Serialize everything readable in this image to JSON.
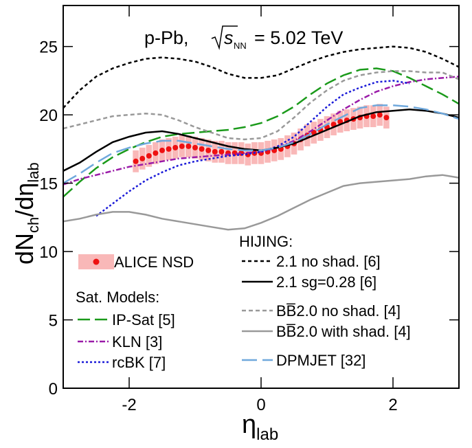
{
  "chart_data": {
    "type": "line",
    "title_parts": [
      "p-Pb,",
      "s",
      "NN",
      "= 5.02 TeV"
    ],
    "ylabel_parts": [
      "dN",
      "ch",
      "/dη",
      "lab"
    ],
    "xlabel_parts": [
      "η",
      "lab"
    ],
    "xlim": [
      -3,
      3
    ],
    "xticks": [
      -2,
      0,
      2
    ],
    "ylim": [
      0,
      28
    ],
    "yticks": [
      0,
      5,
      10,
      15,
      20,
      25
    ],
    "legend_groups": [
      "Sat. Models:",
      "HIJING:"
    ],
    "x": [
      -3,
      -2.75,
      -2.5,
      -2.25,
      -2,
      -1.75,
      -1.5,
      -1.25,
      -1,
      -0.75,
      -0.5,
      -0.25,
      0,
      0.25,
      0.5,
      0.75,
      1,
      1.25,
      1.5,
      1.75,
      2,
      2.25,
      2.5,
      2.75,
      3
    ],
    "series": [
      {
        "name": "ALICE NSD",
        "color": "#ee1111",
        "box_color": "#f9b8b8",
        "error": 0.8,
        "x": [
          -1.9,
          -1.8,
          -1.7,
          -1.6,
          -1.5,
          -1.4,
          -1.3,
          -1.2,
          -1.1,
          -1.0,
          -0.9,
          -0.8,
          -0.7,
          -0.6,
          -0.5,
          -0.4,
          -0.3,
          -0.2,
          -0.1,
          0,
          0.1,
          0.2,
          0.3,
          0.4,
          0.5,
          0.6,
          0.7,
          0.8,
          0.9,
          1.0,
          1.1,
          1.2,
          1.3,
          1.4,
          1.5,
          1.6,
          1.7,
          1.8,
          1.9
        ],
        "values": [
          16.6,
          16.8,
          17.0,
          17.2,
          17.4,
          17.5,
          17.6,
          17.7,
          17.7,
          17.6,
          17.5,
          17.4,
          17.3,
          17.3,
          17.2,
          17.2,
          17.2,
          17.1,
          17.2,
          17.2,
          17.3,
          17.4,
          17.5,
          17.7,
          17.9,
          18.2,
          18.5,
          18.7,
          18.9,
          19.1,
          19.3,
          19.5,
          19.6,
          19.7,
          19.8,
          19.9,
          19.9,
          20.0,
          19.8
        ]
      },
      {
        "name": "IP-Sat [5]",
        "color": "#1a9a1a",
        "dash": "18 7",
        "values": [
          14.0,
          15.1,
          16.1,
          16.9,
          17.5,
          18.0,
          18.4,
          18.6,
          18.7,
          18.8,
          18.9,
          19.1,
          19.4,
          19.9,
          20.6,
          21.5,
          22.3,
          22.9,
          23.3,
          23.4,
          23.2,
          22.7,
          22.1,
          21.5,
          20.8
        ]
      },
      {
        "name": "KLN [3]",
        "color": "#9a1aa8",
        "dash": "8 3 2 3",
        "values": [
          14.9,
          15.3,
          15.6,
          15.9,
          16.2,
          16.4,
          16.6,
          16.8,
          16.9,
          17.0,
          17.1,
          17.2,
          17.3,
          17.6,
          18.1,
          18.8,
          19.6,
          20.4,
          21.1,
          21.7,
          22.1,
          22.4,
          22.6,
          22.7,
          22.8
        ]
      },
      {
        "name": "rcBK [7]",
        "color": "#1a1ad8",
        "dash": "3 3",
        "values": [
          null,
          null,
          12.6,
          13.5,
          14.4,
          15.2,
          15.8,
          16.3,
          16.6,
          16.8,
          17.0,
          17.1,
          17.3,
          17.7,
          18.4,
          19.5,
          20.6,
          21.5,
          22.0,
          22.4,
          22.5,
          22.3,
          null,
          null,
          null
        ]
      },
      {
        "name": "2.1 no shad. [6]",
        "color": "#000000",
        "dash": "5 4",
        "values": [
          20.5,
          21.8,
          22.8,
          23.4,
          23.8,
          24.1,
          24.2,
          24.1,
          23.9,
          23.5,
          23.0,
          22.7,
          22.7,
          22.9,
          23.4,
          23.9,
          24.3,
          24.6,
          24.8,
          24.9,
          25.0,
          24.9,
          24.6,
          24.1,
          23.5
        ]
      },
      {
        "name": "2.1 sg=0.28 [6]",
        "color": "#000000",
        "dash": "",
        "values": [
          15.9,
          16.5,
          17.3,
          18.0,
          18.4,
          18.7,
          18.8,
          18.6,
          18.3,
          18.0,
          17.7,
          17.5,
          17.4,
          17.6,
          17.9,
          18.4,
          18.9,
          19.4,
          19.9,
          20.2,
          20.3,
          20.4,
          20.3,
          20.1,
          19.8
        ]
      },
      {
        "name": "BB̅2.0 no shad. [4]",
        "color": "#999999",
        "dash": "6 4",
        "values": [
          19.0,
          19.3,
          19.6,
          19.9,
          20.0,
          20.1,
          20.0,
          19.6,
          19.1,
          18.7,
          18.3,
          18.2,
          18.3,
          18.8,
          19.8,
          20.9,
          21.8,
          22.5,
          22.9,
          23.1,
          23.2,
          23.2,
          23.1,
          23.1,
          22.6
        ]
      },
      {
        "name": "BB̅2.0 with shad. [4]",
        "color": "#999999",
        "dash": "",
        "values": [
          12.2,
          12.4,
          12.7,
          12.9,
          12.9,
          12.7,
          12.4,
          12.2,
          12.0,
          11.8,
          11.6,
          11.7,
          12.1,
          12.6,
          13.2,
          13.8,
          14.3,
          14.8,
          15.0,
          15.1,
          15.2,
          15.3,
          15.5,
          15.6,
          15.4
        ]
      },
      {
        "name": "DPMJET [32]",
        "color": "#6fa8dc",
        "dash": "22 8",
        "values": [
          15.0,
          15.7,
          16.5,
          17.2,
          17.6,
          17.9,
          18.1,
          18.1,
          17.9,
          17.7,
          17.5,
          17.4,
          17.4,
          17.6,
          18.0,
          18.6,
          19.3,
          19.9,
          20.5,
          20.7,
          20.7,
          20.6,
          20.4,
          20.1,
          19.7
        ]
      }
    ]
  }
}
